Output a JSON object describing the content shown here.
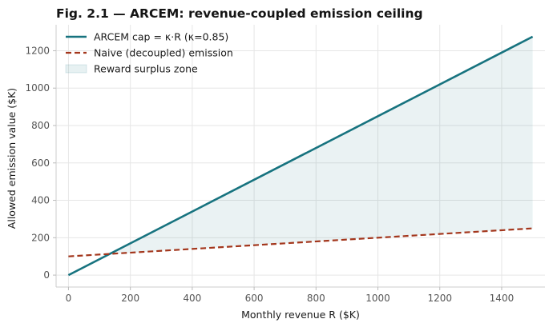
{
  "chart_data": {
    "type": "line",
    "title": "Fig. 2.1 — ARCEM: revenue-coupled emission ceiling",
    "xlabel": "Monthly revenue R ($K)",
    "ylabel": "Allowed emission value ($K)",
    "xlim": [
      -40,
      1540
    ],
    "ylim": [
      -63.75,
      1338.75
    ],
    "xticks": [
      0,
      200,
      400,
      600,
      800,
      1000,
      1200,
      1400
    ],
    "yticks": [
      0,
      200,
      400,
      600,
      800,
      1000,
      1200
    ],
    "grid": true,
    "legend_position": "top-left",
    "series": [
      {
        "name": "ARCEM cap = κ·R  (κ=0.85)",
        "style": "solid",
        "color": "#17737f",
        "x": [
          0,
          1500
        ],
        "y": [
          0,
          1275
        ]
      },
      {
        "name": "Naive (decoupled) emission",
        "style": "dashed",
        "color": "#a3361c",
        "x": [
          0,
          1500
        ],
        "y": [
          100,
          250
        ]
      }
    ],
    "fill": {
      "name": "Reward surplus zone",
      "color": "#17737f",
      "opacity": 0.09,
      "between": [
        "ARCEM cap = κ·R  (κ=0.85)",
        "Naive (decoupled) emission"
      ],
      "x_from": 133.3,
      "x_to": 1500
    }
  }
}
